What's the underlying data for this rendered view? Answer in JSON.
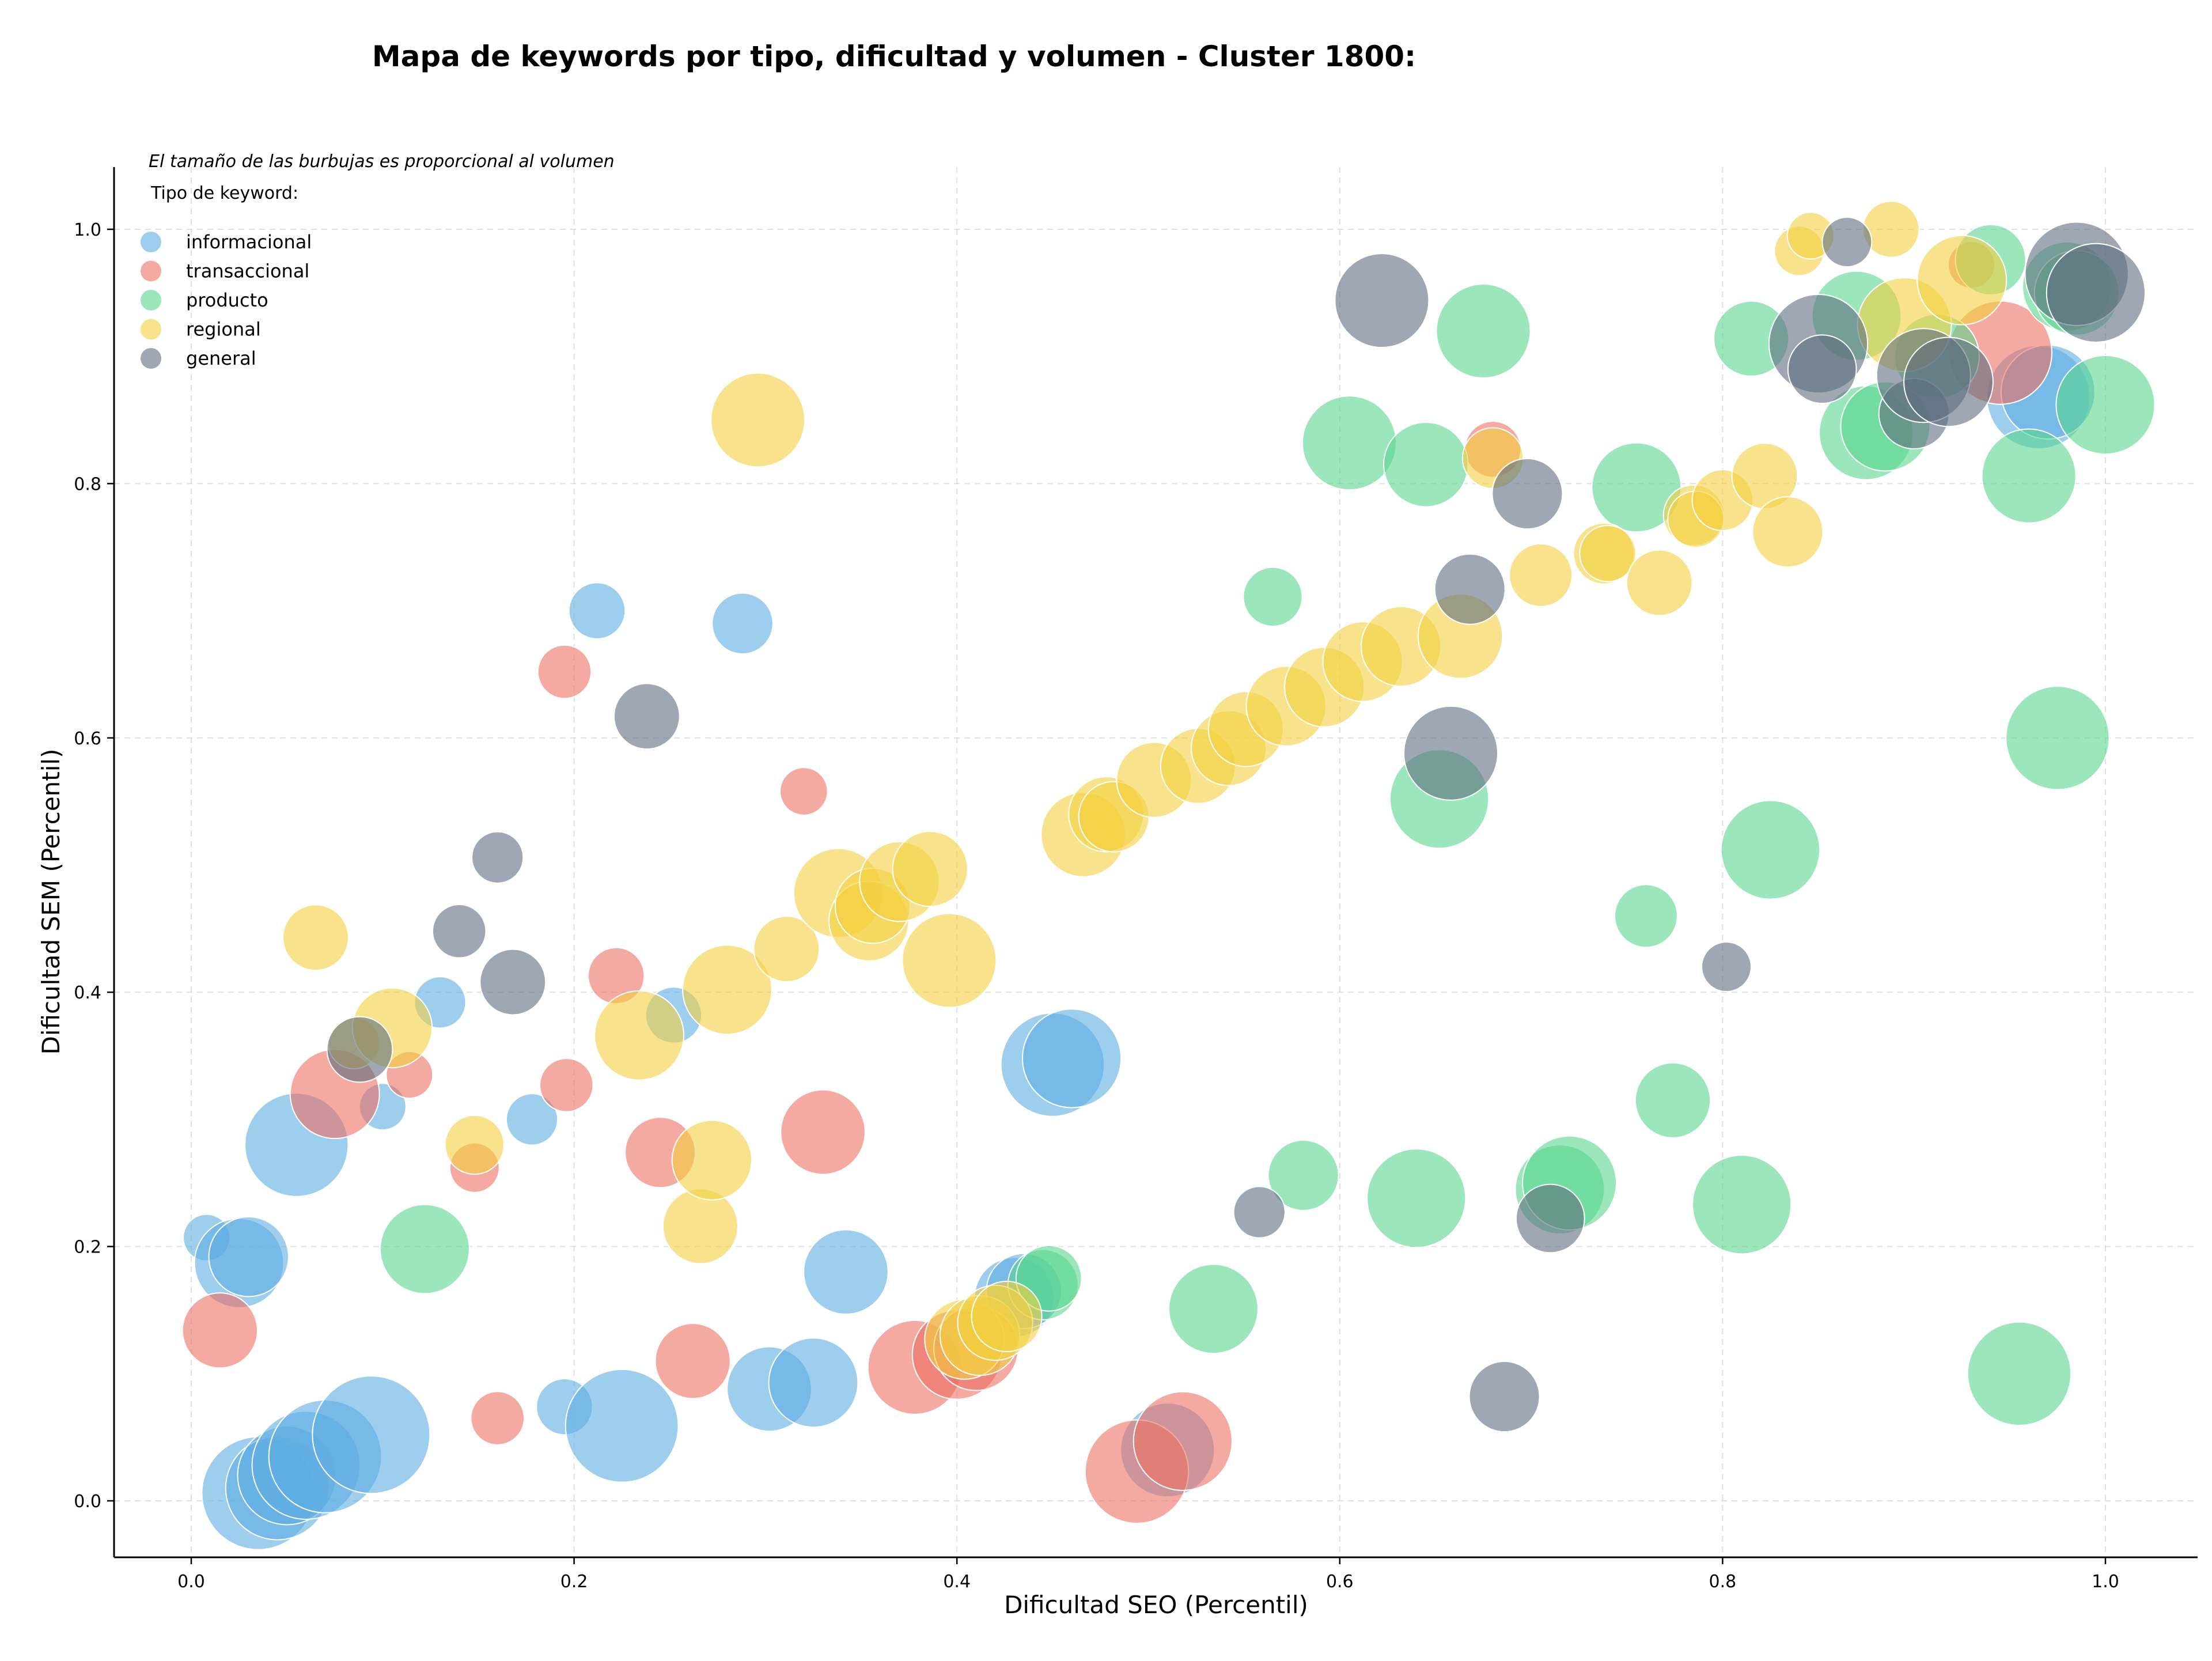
{
  "chart_data": {
    "type": "scatter",
    "title": "Mapa de keywords por tipo, dificultad y volumen - Cluster 1800:",
    "xlabel": "Dificultad SEO (Percentil)",
    "ylabel": "Dificultad SEM (Percentil)",
    "xlim": [
      -0.04,
      1.05
    ],
    "ylim": [
      -0.045,
      1.05
    ],
    "xticks": [
      "0.0",
      "0.2",
      "0.4",
      "0.6",
      "0.8",
      "1.0"
    ],
    "yticks": [
      "0.0",
      "0.2",
      "0.4",
      "0.6",
      "0.8",
      "1.0"
    ],
    "grid": true,
    "note": "El tamaño de las burbujas es proporcional al volumen",
    "legend_title": "Tipo de keyword:",
    "legend_position": "top-left",
    "series": [
      {
        "name": "informacional",
        "color": "#5DADE2",
        "points": [
          [
            0.008,
            0.207,
            0.25
          ],
          [
            0.025,
            0.187,
            0.7
          ],
          [
            0.03,
            0.192,
            0.6
          ],
          [
            0.035,
            0.006,
            0.95
          ],
          [
            0.045,
            0.01,
            0.85
          ],
          [
            0.05,
            0.02,
            0.8
          ],
          [
            0.055,
            0.28,
            0.85
          ],
          [
            0.06,
            0.028,
            0.9
          ],
          [
            0.07,
            0.035,
            0.95
          ],
          [
            0.094,
            0.052,
            1.0
          ],
          [
            0.1,
            0.31,
            0.25
          ],
          [
            0.13,
            0.392,
            0.3
          ],
          [
            0.178,
            0.3,
            0.3
          ],
          [
            0.195,
            0.074,
            0.35
          ],
          [
            0.212,
            0.7,
            0.35
          ],
          [
            0.225,
            0.059,
            0.95
          ],
          [
            0.252,
            0.382,
            0.35
          ],
          [
            0.288,
            0.69,
            0.4
          ],
          [
            0.302,
            0.088,
            0.65
          ],
          [
            0.325,
            0.093,
            0.7
          ],
          [
            0.342,
            0.18,
            0.65
          ],
          [
            0.43,
            0.16,
            0.6
          ],
          [
            0.435,
            0.165,
            0.55
          ],
          [
            0.45,
            0.343,
            0.85
          ],
          [
            0.46,
            0.348,
            0.8
          ],
          [
            0.51,
            0.04,
            0.75
          ],
          [
            0.965,
            0.868,
            0.85
          ],
          [
            0.97,
            0.872,
            0.75
          ]
        ]
      },
      {
        "name": "transaccional",
        "color": "#EC7063",
        "points": [
          [
            0.015,
            0.134,
            0.55
          ],
          [
            0.075,
            0.32,
            0.7
          ],
          [
            0.114,
            0.335,
            0.25
          ],
          [
            0.148,
            0.262,
            0.28
          ],
          [
            0.16,
            0.065,
            0.32
          ],
          [
            0.195,
            0.652,
            0.32
          ],
          [
            0.196,
            0.327,
            0.32
          ],
          [
            0.222,
            0.413,
            0.35
          ],
          [
            0.245,
            0.274,
            0.5
          ],
          [
            0.262,
            0.11,
            0.55
          ],
          [
            0.32,
            0.558,
            0.26
          ],
          [
            0.33,
            0.29,
            0.65
          ],
          [
            0.378,
            0.105,
            0.75
          ],
          [
            0.4,
            0.115,
            0.7
          ],
          [
            0.41,
            0.12,
            0.65
          ],
          [
            0.494,
            0.023,
            0.85
          ],
          [
            0.518,
            0.047,
            0.8
          ],
          [
            0.68,
            0.827,
            0.35
          ],
          [
            0.93,
            0.972,
            0.25
          ],
          [
            0.945,
            0.903,
            0.85
          ]
        ]
      },
      {
        "name": "producto",
        "color": "#58D68D",
        "points": [
          [
            0.122,
            0.198,
            0.7
          ],
          [
            0.445,
            0.17,
            0.5
          ],
          [
            0.448,
            0.175,
            0.45
          ],
          [
            0.534,
            0.151,
            0.7
          ],
          [
            0.565,
            0.711,
            0.38
          ],
          [
            0.581,
            0.256,
            0.5
          ],
          [
            0.605,
            0.832,
            0.75
          ],
          [
            0.64,
            0.238,
            0.8
          ],
          [
            0.645,
            0.815,
            0.65
          ],
          [
            0.652,
            0.552,
            0.8
          ],
          [
            0.675,
            0.92,
            0.75
          ],
          [
            0.715,
            0.245,
            0.7
          ],
          [
            0.72,
            0.25,
            0.75
          ],
          [
            0.755,
            0.797,
            0.7
          ],
          [
            0.76,
            0.46,
            0.42
          ],
          [
            0.774,
            0.315,
            0.55
          ],
          [
            0.81,
            0.233,
            0.8
          ],
          [
            0.815,
            0.914,
            0.55
          ],
          [
            0.825,
            0.512,
            0.8
          ],
          [
            0.87,
            0.932,
            0.7
          ],
          [
            0.875,
            0.84,
            0.75
          ],
          [
            0.885,
            0.845,
            0.7
          ],
          [
            0.912,
            0.9,
            0.65
          ],
          [
            0.94,
            0.976,
            0.5
          ],
          [
            0.955,
            0.1,
            0.85
          ],
          [
            0.96,
            0.806,
            0.75
          ],
          [
            0.975,
            0.6,
            0.85
          ],
          [
            0.98,
            0.955,
            0.7
          ],
          [
            0.985,
            0.95,
            0.65
          ],
          [
            1.0,
            0.862,
            0.8
          ]
        ]
      },
      {
        "name": "regional",
        "color": "#F4D03F",
        "points": [
          [
            0.065,
            0.443,
            0.45
          ],
          [
            0.085,
            0.36,
            0.3
          ],
          [
            0.105,
            0.372,
            0.6
          ],
          [
            0.148,
            0.28,
            0.38
          ],
          [
            0.234,
            0.366,
            0.7
          ],
          [
            0.266,
            0.216,
            0.55
          ],
          [
            0.272,
            0.268,
            0.6
          ],
          [
            0.28,
            0.402,
            0.7
          ],
          [
            0.296,
            0.85,
            0.75
          ],
          [
            0.311,
            0.434,
            0.45
          ],
          [
            0.338,
            0.478,
            0.7
          ],
          [
            0.354,
            0.456,
            0.6
          ],
          [
            0.356,
            0.468,
            0.55
          ],
          [
            0.37,
            0.487,
            0.6
          ],
          [
            0.386,
            0.497,
            0.55
          ],
          [
            0.396,
            0.425,
            0.75
          ],
          [
            0.404,
            0.127,
            0.6
          ],
          [
            0.412,
            0.13,
            0.6
          ],
          [
            0.42,
            0.14,
            0.55
          ],
          [
            0.426,
            0.145,
            0.5
          ],
          [
            0.466,
            0.524,
            0.65
          ],
          [
            0.478,
            0.54,
            0.55
          ],
          [
            0.482,
            0.538,
            0.5
          ],
          [
            0.503,
            0.567,
            0.55
          ],
          [
            0.526,
            0.578,
            0.55
          ],
          [
            0.542,
            0.592,
            0.55
          ],
          [
            0.551,
            0.607,
            0.55
          ],
          [
            0.572,
            0.625,
            0.6
          ],
          [
            0.592,
            0.64,
            0.6
          ],
          [
            0.612,
            0.66,
            0.6
          ],
          [
            0.632,
            0.672,
            0.6
          ],
          [
            0.663,
            0.68,
            0.65
          ],
          [
            0.68,
            0.82,
            0.4
          ],
          [
            0.705,
            0.728,
            0.42
          ],
          [
            0.738,
            0.745,
            0.4
          ],
          [
            0.74,
            0.745,
            0.35
          ],
          [
            0.767,
            0.722,
            0.45
          ],
          [
            0.785,
            0.775,
            0.4
          ],
          [
            0.786,
            0.772,
            0.35
          ],
          [
            0.8,
            0.787,
            0.4
          ],
          [
            0.822,
            0.806,
            0.45
          ],
          [
            0.834,
            0.762,
            0.5
          ],
          [
            0.84,
            0.983,
            0.28
          ],
          [
            0.846,
            0.995,
            0.25
          ],
          [
            0.888,
            1.0,
            0.35
          ],
          [
            0.895,
            0.925,
            0.75
          ],
          [
            0.925,
            0.96,
            0.7
          ]
        ]
      },
      {
        "name": "general",
        "color": "#5D6D7E",
        "points": [
          [
            0.088,
            0.355,
            0.45
          ],
          [
            0.14,
            0.448,
            0.32
          ],
          [
            0.16,
            0.506,
            0.3
          ],
          [
            0.168,
            0.408,
            0.45
          ],
          [
            0.238,
            0.617,
            0.45
          ],
          [
            0.558,
            0.227,
            0.3
          ],
          [
            0.622,
            0.944,
            0.75
          ],
          [
            0.658,
            0.588,
            0.75
          ],
          [
            0.668,
            0.717,
            0.5
          ],
          [
            0.686,
            0.082,
            0.5
          ],
          [
            0.698,
            0.792,
            0.5
          ],
          [
            0.71,
            0.222,
            0.48
          ],
          [
            0.802,
            0.42,
            0.28
          ],
          [
            0.85,
            0.91,
            0.8
          ],
          [
            0.852,
            0.89,
            0.48
          ],
          [
            0.865,
            0.99,
            0.28
          ],
          [
            0.9,
            0.855,
            0.5
          ],
          [
            0.905,
            0.885,
            0.75
          ],
          [
            0.918,
            0.88,
            0.7
          ],
          [
            0.985,
            0.965,
            0.85
          ],
          [
            0.995,
            0.95,
            0.8
          ]
        ]
      }
    ]
  }
}
